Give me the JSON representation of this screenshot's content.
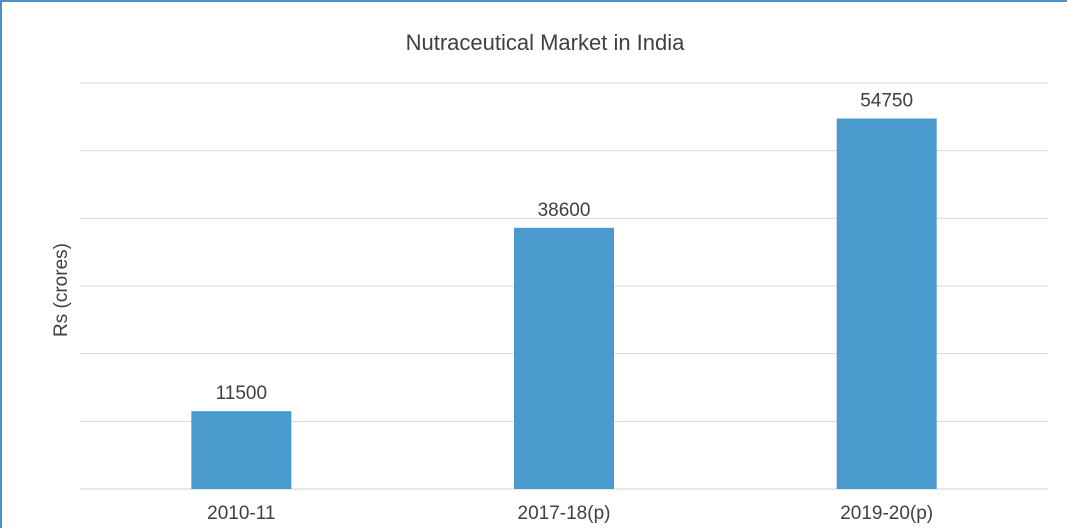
{
  "chart_data": {
    "type": "bar",
    "title": "Nutraceutical Market in India",
    "ylabel": "Rs (crores)",
    "xlabel": "",
    "categories": [
      "2010-11",
      "2017-18(p)",
      "2019-20(p)"
    ],
    "values": [
      11500,
      38600,
      54750
    ],
    "data_labels": [
      "11500",
      "38600",
      "54750"
    ],
    "ylim": [
      0,
      60000
    ],
    "grid": true,
    "legend": "none",
    "colors": {
      "bar": "#4a9acd",
      "grid": "#d9d9d9",
      "text": "#404040",
      "frame": "#4e8fc7"
    }
  }
}
